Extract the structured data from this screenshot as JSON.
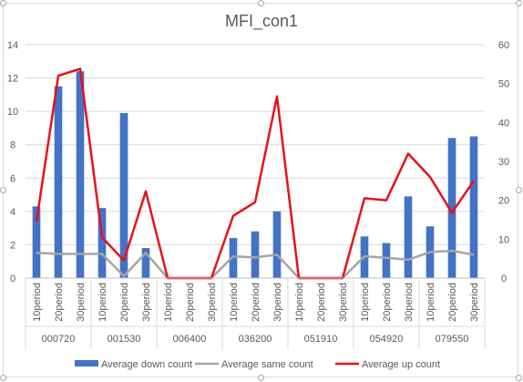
{
  "chart_data": {
    "type": "bar",
    "title": "MFI_con1",
    "groups": [
      "000720",
      "001530",
      "006400",
      "036200",
      "051910",
      "054920",
      "079550"
    ],
    "periods": [
      "10period",
      "20period",
      "30period"
    ],
    "categories": [
      "10period",
      "20period",
      "30period",
      "10period",
      "20period",
      "30period",
      "10period",
      "20period",
      "30period",
      "10period",
      "20period",
      "30period",
      "10period",
      "20period",
      "30period",
      "10period",
      "20period",
      "30period",
      "10period",
      "20period",
      "30period"
    ],
    "series": [
      {
        "name": "Average down count",
        "type": "bar",
        "axis": "left",
        "color": "#4472c4",
        "values": [
          4.3,
          11.5,
          12.4,
          4.2,
          9.9,
          1.8,
          0,
          0,
          0,
          2.4,
          2.8,
          4.0,
          0,
          0,
          0,
          2.5,
          2.1,
          4.9,
          3.1,
          8.4,
          8.5
        ]
      },
      {
        "name": "Average same count",
        "type": "line",
        "axis": "right",
        "color": "#a5a5a5",
        "values": [
          6.5,
          6.2,
          6.2,
          6.2,
          0.5,
          6.5,
          0,
          0,
          0,
          5.6,
          5.3,
          6.0,
          0,
          0,
          0,
          5.6,
          5.2,
          4.7,
          6.7,
          7.0,
          6.0
        ]
      },
      {
        "name": "Average up count",
        "type": "line",
        "axis": "right",
        "color": "#e8101c",
        "values": [
          14.5,
          52.0,
          53.8,
          10.5,
          4.5,
          22.3,
          0,
          0,
          0,
          16.0,
          19.5,
          46.7,
          0,
          0,
          0,
          20.5,
          20.0,
          32.0,
          26.0,
          16.8,
          25.0
        ]
      }
    ],
    "y_left": {
      "min": 0,
      "max": 14,
      "step": 2
    },
    "y_right": {
      "min": 0,
      "max": 60,
      "step": 10
    },
    "grid": true,
    "legend": "bottom"
  }
}
